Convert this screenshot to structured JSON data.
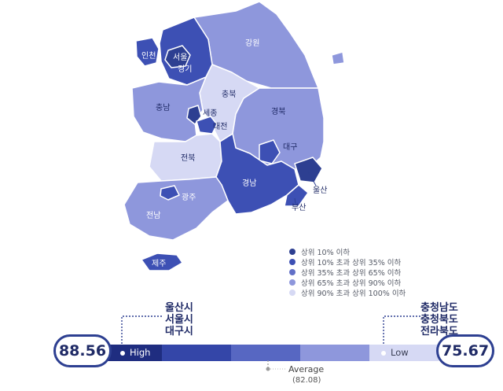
{
  "colors": {
    "top10": "#2d3f91",
    "top35": "#3d50b4",
    "top65": "#6270c7",
    "top90": "#8e97dc",
    "top100": "#d6d9f4"
  },
  "regions": {
    "seoul": "서울",
    "incheon": "인천",
    "gyeonggi": "경기",
    "gangwon": "강원",
    "chungbuk": "충북",
    "chungnam": "충남",
    "sejong": "세종",
    "daejeon": "대전",
    "gyeongbuk": "경북",
    "daegu": "대구",
    "jeonbuk": "전북",
    "gyeongnam": "경남",
    "ulsan": "울산",
    "busan": "부산",
    "gwangju": "광주",
    "jeonnam": "전남",
    "jeju": "제주"
  },
  "legend": [
    {
      "label": "상위 10% 이하",
      "color": "#2d3f91"
    },
    {
      "label": "상위 10% 초과 상위 35% 이하",
      "color": "#3d50b4"
    },
    {
      "label": "상위 35% 초과 상위 65% 이하",
      "color": "#6270c7"
    },
    {
      "label": "상위 65% 초과 상위 90% 이하",
      "color": "#8e97dc"
    },
    {
      "label": "상위 90% 초과 상위 100% 이하",
      "color": "#d6d9f4"
    }
  ],
  "scale": {
    "high_value": "88.56",
    "high_label": "High",
    "low_value": "75.67",
    "low_label": "Low",
    "average_label": "Average",
    "average_value": "(82.08)",
    "high_cities": [
      "울산시",
      "서울시",
      "대구시"
    ],
    "low_cities": [
      "충청남도",
      "충청북도",
      "전라북도"
    ]
  }
}
